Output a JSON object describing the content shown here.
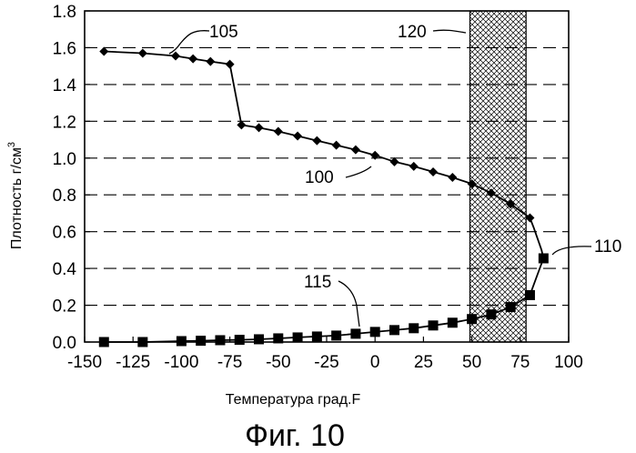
{
  "chart_data": {
    "type": "line",
    "title": "",
    "xlabel": "Температура град.F",
    "ylabel_main": "Плотность г/см",
    "ylabel_sup": "3",
    "xlim": [
      -150,
      100
    ],
    "ylim": [
      0.0,
      1.8
    ],
    "xticks": [
      -150,
      -125,
      -100,
      -75,
      -50,
      -25,
      0,
      25,
      50,
      75,
      100
    ],
    "yticks": [
      0.0,
      0.2,
      0.4,
      0.6,
      0.8,
      1.0,
      1.2,
      1.4,
      1.6,
      1.8
    ],
    "ytick_labels": [
      "0.0",
      "0.2",
      "0.4",
      "0.6",
      "0.8",
      "1.0",
      "1.2",
      "1.4",
      "1.6",
      "1.8"
    ],
    "grid": "horizontal-dashed",
    "series": [
      {
        "marker": "diamond",
        "x": [
          -140,
          -120,
          -103,
          -94,
          -85,
          -75,
          -69,
          -60,
          -50,
          -40,
          -30,
          -20,
          -10,
          0,
          10,
          20,
          30,
          40,
          50,
          60,
          70,
          80
        ],
        "y": [
          1.58,
          1.57,
          1.555,
          1.54,
          1.525,
          1.51,
          1.18,
          1.165,
          1.145,
          1.12,
          1.095,
          1.07,
          1.045,
          1.015,
          0.98,
          0.955,
          0.925,
          0.895,
          0.86,
          0.81,
          0.75,
          0.675
        ]
      },
      {
        "marker": "square",
        "x": [
          -140,
          -120,
          -100,
          -90,
          -80,
          -70,
          -60,
          -50,
          -40,
          -30,
          -20,
          -10,
          0,
          10,
          20,
          30,
          40,
          50,
          60,
          70,
          80,
          87
        ],
        "y": [
          0.0,
          0.0,
          0.005,
          0.007,
          0.01,
          0.012,
          0.015,
          0.02,
          0.025,
          0.03,
          0.035,
          0.045,
          0.055,
          0.065,
          0.075,
          0.09,
          0.105,
          0.125,
          0.15,
          0.19,
          0.255,
          0.455
        ]
      }
    ],
    "connector": {
      "x": [
        80,
        82,
        84,
        86,
        87
      ],
      "y": [
        0.675,
        0.62,
        0.56,
        0.5,
        0.455
      ]
    },
    "shaded_band": {
      "x_from": 49,
      "x_to": 78
    },
    "annotations": [
      {
        "text": "105"
      },
      {
        "text": "120"
      },
      {
        "text": "100"
      },
      {
        "text": "110"
      },
      {
        "text": "115"
      }
    ]
  },
  "figure_caption": "Фиг. 10"
}
